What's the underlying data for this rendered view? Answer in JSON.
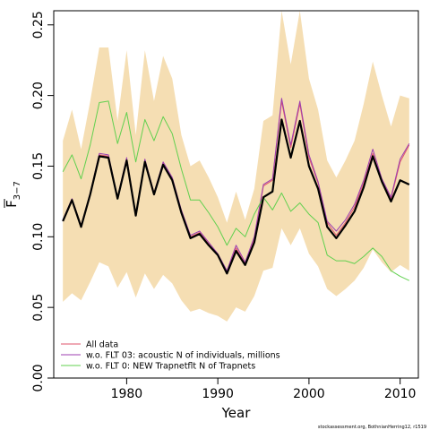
{
  "chart_data": {
    "type": "line",
    "xlabel": "Year",
    "ylabel": "F",
    "ylabel_sub": "3−7",
    "xlim": [
      1972,
      2012
    ],
    "ylim": [
      0,
      0.26
    ],
    "x_ticks": [
      1980,
      1990,
      2000,
      2010
    ],
    "y_ticks": [
      0.0,
      0.05,
      0.1,
      0.15,
      0.2,
      0.25
    ],
    "x_tick_labels": [
      "1980",
      "1990",
      "2000",
      "2010"
    ],
    "y_tick_labels": [
      "0.00",
      "0.05",
      "0.10",
      "0.15",
      "0.20",
      "0.25"
    ],
    "grid": false,
    "legend_position": "bottom-left",
    "credit": "stockassessment.org, BothnianHerring12, r1519",
    "x": [
      1973,
      1974,
      1975,
      1976,
      1977,
      1978,
      1979,
      1980,
      1981,
      1982,
      1983,
      1984,
      1985,
      1986,
      1987,
      1988,
      1989,
      1990,
      1991,
      1992,
      1993,
      1994,
      1995,
      1996,
      1997,
      1998,
      1999,
      2000,
      2001,
      2002,
      2003,
      2004,
      2005,
      2006,
      2007,
      2008,
      2009,
      2010,
      2011
    ],
    "band": {
      "color": "#f5deb3",
      "upper": [
        0.168,
        0.19,
        0.162,
        0.196,
        0.234,
        0.234,
        0.182,
        0.232,
        0.172,
        0.232,
        0.196,
        0.228,
        0.212,
        0.172,
        0.15,
        0.154,
        0.142,
        0.128,
        0.11,
        0.132,
        0.112,
        0.134,
        0.182,
        0.186,
        0.26,
        0.222,
        0.26,
        0.212,
        0.19,
        0.154,
        0.142,
        0.154,
        0.168,
        0.194,
        0.224,
        0.2,
        0.178,
        0.2,
        0.198
      ],
      "lower": [
        0.054,
        0.06,
        0.055,
        0.068,
        0.082,
        0.079,
        0.064,
        0.075,
        0.057,
        0.074,
        0.063,
        0.073,
        0.067,
        0.055,
        0.047,
        0.049,
        0.046,
        0.044,
        0.04,
        0.05,
        0.047,
        0.058,
        0.076,
        0.078,
        0.106,
        0.094,
        0.106,
        0.088,
        0.079,
        0.063,
        0.058,
        0.063,
        0.069,
        0.078,
        0.091,
        0.082,
        0.075,
        0.08,
        0.076
      ]
    },
    "series": [
      {
        "name": "All data",
        "color": "#df536b",
        "width": 1,
        "values": [
          0.111,
          0.126,
          0.108,
          0.13,
          0.158,
          0.157,
          0.127,
          0.155,
          0.116,
          0.154,
          0.131,
          0.152,
          0.141,
          0.118,
          0.1,
          0.103,
          0.095,
          0.087,
          0.075,
          0.092,
          0.081,
          0.098,
          0.136,
          0.14,
          0.196,
          0.163,
          0.194,
          0.156,
          0.138,
          0.11,
          0.101,
          0.11,
          0.121,
          0.138,
          0.159,
          0.14,
          0.127,
          0.153,
          0.165
        ]
      },
      {
        "name": "w.o. FLT 03:   acoustic    N of individuals, millions",
        "color": "#9c3fb0",
        "width": 1,
        "values": [
          0.112,
          0.127,
          0.108,
          0.131,
          0.159,
          0.158,
          0.128,
          0.156,
          0.116,
          0.155,
          0.131,
          0.153,
          0.142,
          0.119,
          0.101,
          0.104,
          0.096,
          0.088,
          0.076,
          0.094,
          0.082,
          0.1,
          0.137,
          0.141,
          0.198,
          0.165,
          0.196,
          0.158,
          0.139,
          0.111,
          0.104,
          0.112,
          0.123,
          0.14,
          0.162,
          0.141,
          0.128,
          0.155,
          0.166
        ]
      },
      {
        "name": "w.o. FLT 0: NEW Trapnetflt    N of Trapnets",
        "color": "#61d04f",
        "width": 1,
        "values": [
          0.146,
          0.158,
          0.141,
          0.165,
          0.195,
          0.196,
          0.166,
          0.188,
          0.153,
          0.183,
          0.168,
          0.185,
          0.173,
          0.148,
          0.126,
          0.126,
          0.117,
          0.107,
          0.094,
          0.106,
          0.1,
          0.116,
          0.128,
          0.119,
          0.131,
          0.118,
          0.124,
          0.116,
          0.11,
          0.087,
          0.083,
          0.083,
          0.081,
          0.086,
          0.092,
          0.086,
          0.076,
          0.072,
          0.069
        ]
      },
      {
        "name": "",
        "color": "#000000",
        "width": 2.2,
        "values": [
          0.111,
          0.126,
          0.107,
          0.13,
          0.157,
          0.156,
          0.127,
          0.154,
          0.115,
          0.153,
          0.13,
          0.151,
          0.14,
          0.117,
          0.099,
          0.102,
          0.094,
          0.087,
          0.074,
          0.09,
          0.08,
          0.096,
          0.128,
          0.132,
          0.183,
          0.156,
          0.182,
          0.15,
          0.134,
          0.107,
          0.099,
          0.108,
          0.118,
          0.135,
          0.157,
          0.139,
          0.125,
          0.14,
          0.137
        ]
      }
    ],
    "legend": [
      {
        "label": "All data",
        "color": "#df536b"
      },
      {
        "label": "w.o. FLT 03:   acoustic    N of individuals, millions",
        "color": "#9c3fb0"
      },
      {
        "label": "w.o. FLT 0: NEW Trapnetflt    N of Trapnets",
        "color": "#61d04f"
      }
    ]
  }
}
